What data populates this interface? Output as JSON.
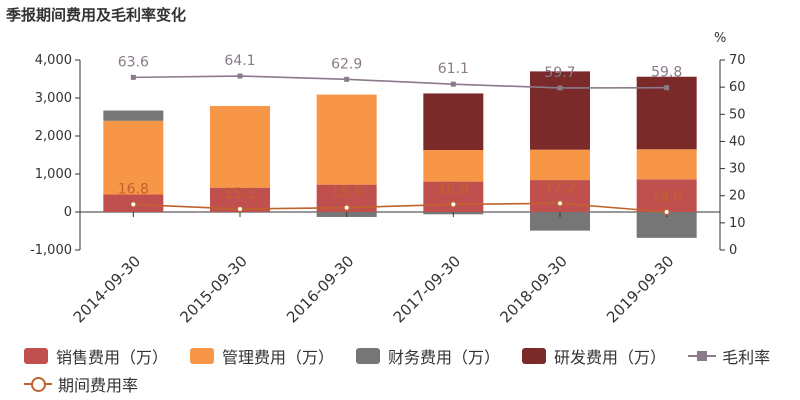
{
  "title": "季报期间费用及毛利率变化",
  "chart_data": {
    "type": "bar",
    "categories": [
      "2014-09-30",
      "2015-09-30",
      "2016-09-30",
      "2017-09-30",
      "2018-09-30",
      "2019-09-30"
    ],
    "stacked": true,
    "series": [
      {
        "name": "销售费用（万）",
        "color": "#c0504d",
        "values": [
          460,
          640,
          720,
          800,
          840,
          860
        ]
      },
      {
        "name": "管理费用（万）",
        "color": "#f79646",
        "values": [
          1940,
          2150,
          2370,
          830,
          800,
          790
        ]
      },
      {
        "name": "财务费用（万）",
        "color": "#767676",
        "values": [
          270,
          0,
          -130,
          -60,
          -490,
          -680
        ]
      },
      {
        "name": "研发费用（万）",
        "color": "#7b2a2a",
        "values": [
          0,
          0,
          0,
          1490,
          2060,
          1910
        ]
      }
    ],
    "lines": [
      {
        "name": "毛利率",
        "color": "#8a7a8a",
        "marker": "square",
        "values": [
          63.6,
          64.1,
          62.9,
          61.1,
          59.7,
          59.8
        ]
      },
      {
        "name": "期间费用率",
        "color": "#c0622c",
        "marker": "circle",
        "values": [
          16.8,
          15.1,
          15.6,
          16.8,
          17.2,
          14.0
        ]
      }
    ],
    "y_left": {
      "min": -1000,
      "max": 4000,
      "ticks": [
        -1000,
        0,
        1000,
        2000,
        3000,
        4000
      ],
      "tick_labels": [
        "-1,000",
        "0",
        "1,000",
        "2,000",
        "3,000",
        "4,000"
      ]
    },
    "y_right": {
      "label": "%",
      "min": 0,
      "max": 70,
      "ticks": [
        0,
        10,
        20,
        30,
        40,
        50,
        60,
        70
      ],
      "tick_labels": [
        "0",
        "10",
        "20",
        "30",
        "40",
        "50",
        "60",
        "70"
      ]
    },
    "grid": false,
    "legend_position": "bottom"
  },
  "legend": [
    {
      "label": "销售费用（万）",
      "kind": "swatch",
      "color": "#c0504d"
    },
    {
      "label": "管理费用（万）",
      "kind": "swatch",
      "color": "#f79646"
    },
    {
      "label": "财务费用（万）",
      "kind": "swatch",
      "color": "#767676"
    },
    {
      "label": "研发费用（万）",
      "kind": "swatch",
      "color": "#7b2a2a"
    },
    {
      "label": "毛利率",
      "kind": "line-square",
      "color": "#8a7a8a"
    },
    {
      "label": "期间费用率",
      "kind": "line-circle",
      "color": "#c0622c"
    }
  ]
}
